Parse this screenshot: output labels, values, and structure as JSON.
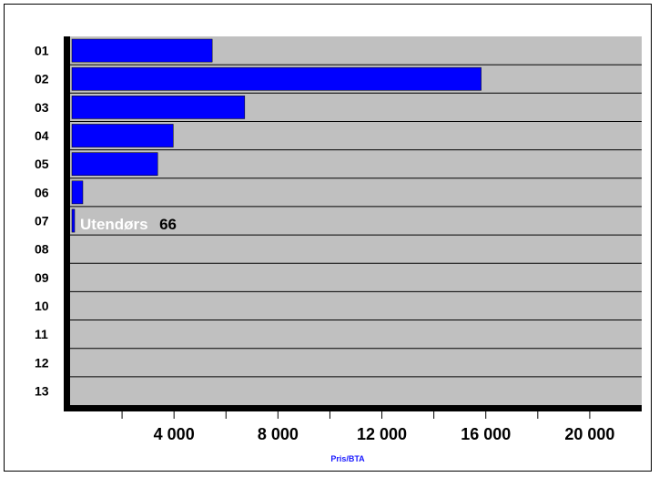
{
  "chart_data": {
    "type": "bar",
    "orientation": "horizontal",
    "categories": [
      "01",
      "02",
      "03",
      "04",
      "05",
      "06",
      "07",
      "08",
      "09",
      "10",
      "11",
      "12",
      "13"
    ],
    "values": [
      5400,
      15750,
      6650,
      3900,
      3300,
      420,
      66,
      0,
      0,
      0,
      0,
      0,
      0
    ],
    "xlabel": "Pris/BTA",
    "xlim": [
      0,
      22000
    ],
    "xticks": [
      4000,
      8000,
      12000,
      16000,
      20000
    ],
    "xtick_labels": [
      "4 000",
      "8 000",
      "12 000",
      "16 000",
      "20 000"
    ],
    "annotation": {
      "category": "07",
      "name": "Utendørs",
      "value": "66"
    },
    "grid": true,
    "colors": {
      "bar": "#0000ff",
      "plot_background": "#c0c0c0",
      "axis_title": "#1a1aff"
    }
  }
}
